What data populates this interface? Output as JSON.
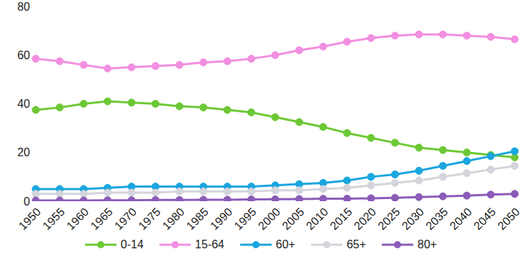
{
  "chart_data": {
    "type": "line",
    "categories": [
      "1950",
      "1955",
      "1960",
      "1965",
      "1970",
      "1975",
      "1980",
      "1985",
      "1990",
      "1995",
      "2000",
      "2005",
      "2010",
      "2015",
      "2020",
      "2025",
      "2030",
      "2035",
      "2040",
      "2045",
      "2050"
    ],
    "series": [
      {
        "name": "0-14",
        "color": "#6cc935",
        "values": [
          37.5,
          38.5,
          40,
          41,
          40.5,
          40,
          39,
          38.5,
          37.5,
          36.5,
          34.5,
          32.5,
          30.5,
          28,
          26,
          24,
          22,
          21,
          20,
          19,
          18
        ]
      },
      {
        "name": "15-64",
        "color": "#f28fe1",
        "values": [
          58.5,
          57.5,
          56,
          54.5,
          55,
          55.5,
          56,
          57,
          57.5,
          58.5,
          60,
          62,
          63.5,
          65.5,
          67,
          68,
          68.5,
          68.5,
          68,
          67.5,
          66.5
        ]
      },
      {
        "name": "60+",
        "color": "#1aa6df",
        "values": [
          5,
          5,
          5,
          5.5,
          6,
          6,
          6,
          6,
          6,
          6,
          6.5,
          7,
          7.5,
          8.5,
          10,
          11,
          12.5,
          14.5,
          16.5,
          18.5,
          20.5
        ]
      },
      {
        "name": "65+",
        "color": "#d4d4dc",
        "values": [
          3,
          3,
          3,
          3.5,
          3.5,
          3.5,
          4,
          4,
          4,
          4,
          4.5,
          4.5,
          5,
          5.5,
          6.5,
          7.5,
          8.5,
          10,
          11.5,
          13,
          14.5
        ]
      },
      {
        "name": "80+",
        "color": "#8b5bb8",
        "values": [
          0.3,
          0.3,
          0.3,
          0.4,
          0.4,
          0.5,
          0.5,
          0.6,
          0.6,
          0.7,
          0.8,
          0.9,
          1,
          1,
          1.2,
          1.4,
          1.7,
          2,
          2.3,
          2.7,
          3
        ]
      }
    ],
    "ylim": [
      0,
      80
    ],
    "yticks": [
      0,
      20,
      40,
      60,
      80
    ],
    "grid": false,
    "legend": "bottom",
    "marker": "circle"
  }
}
